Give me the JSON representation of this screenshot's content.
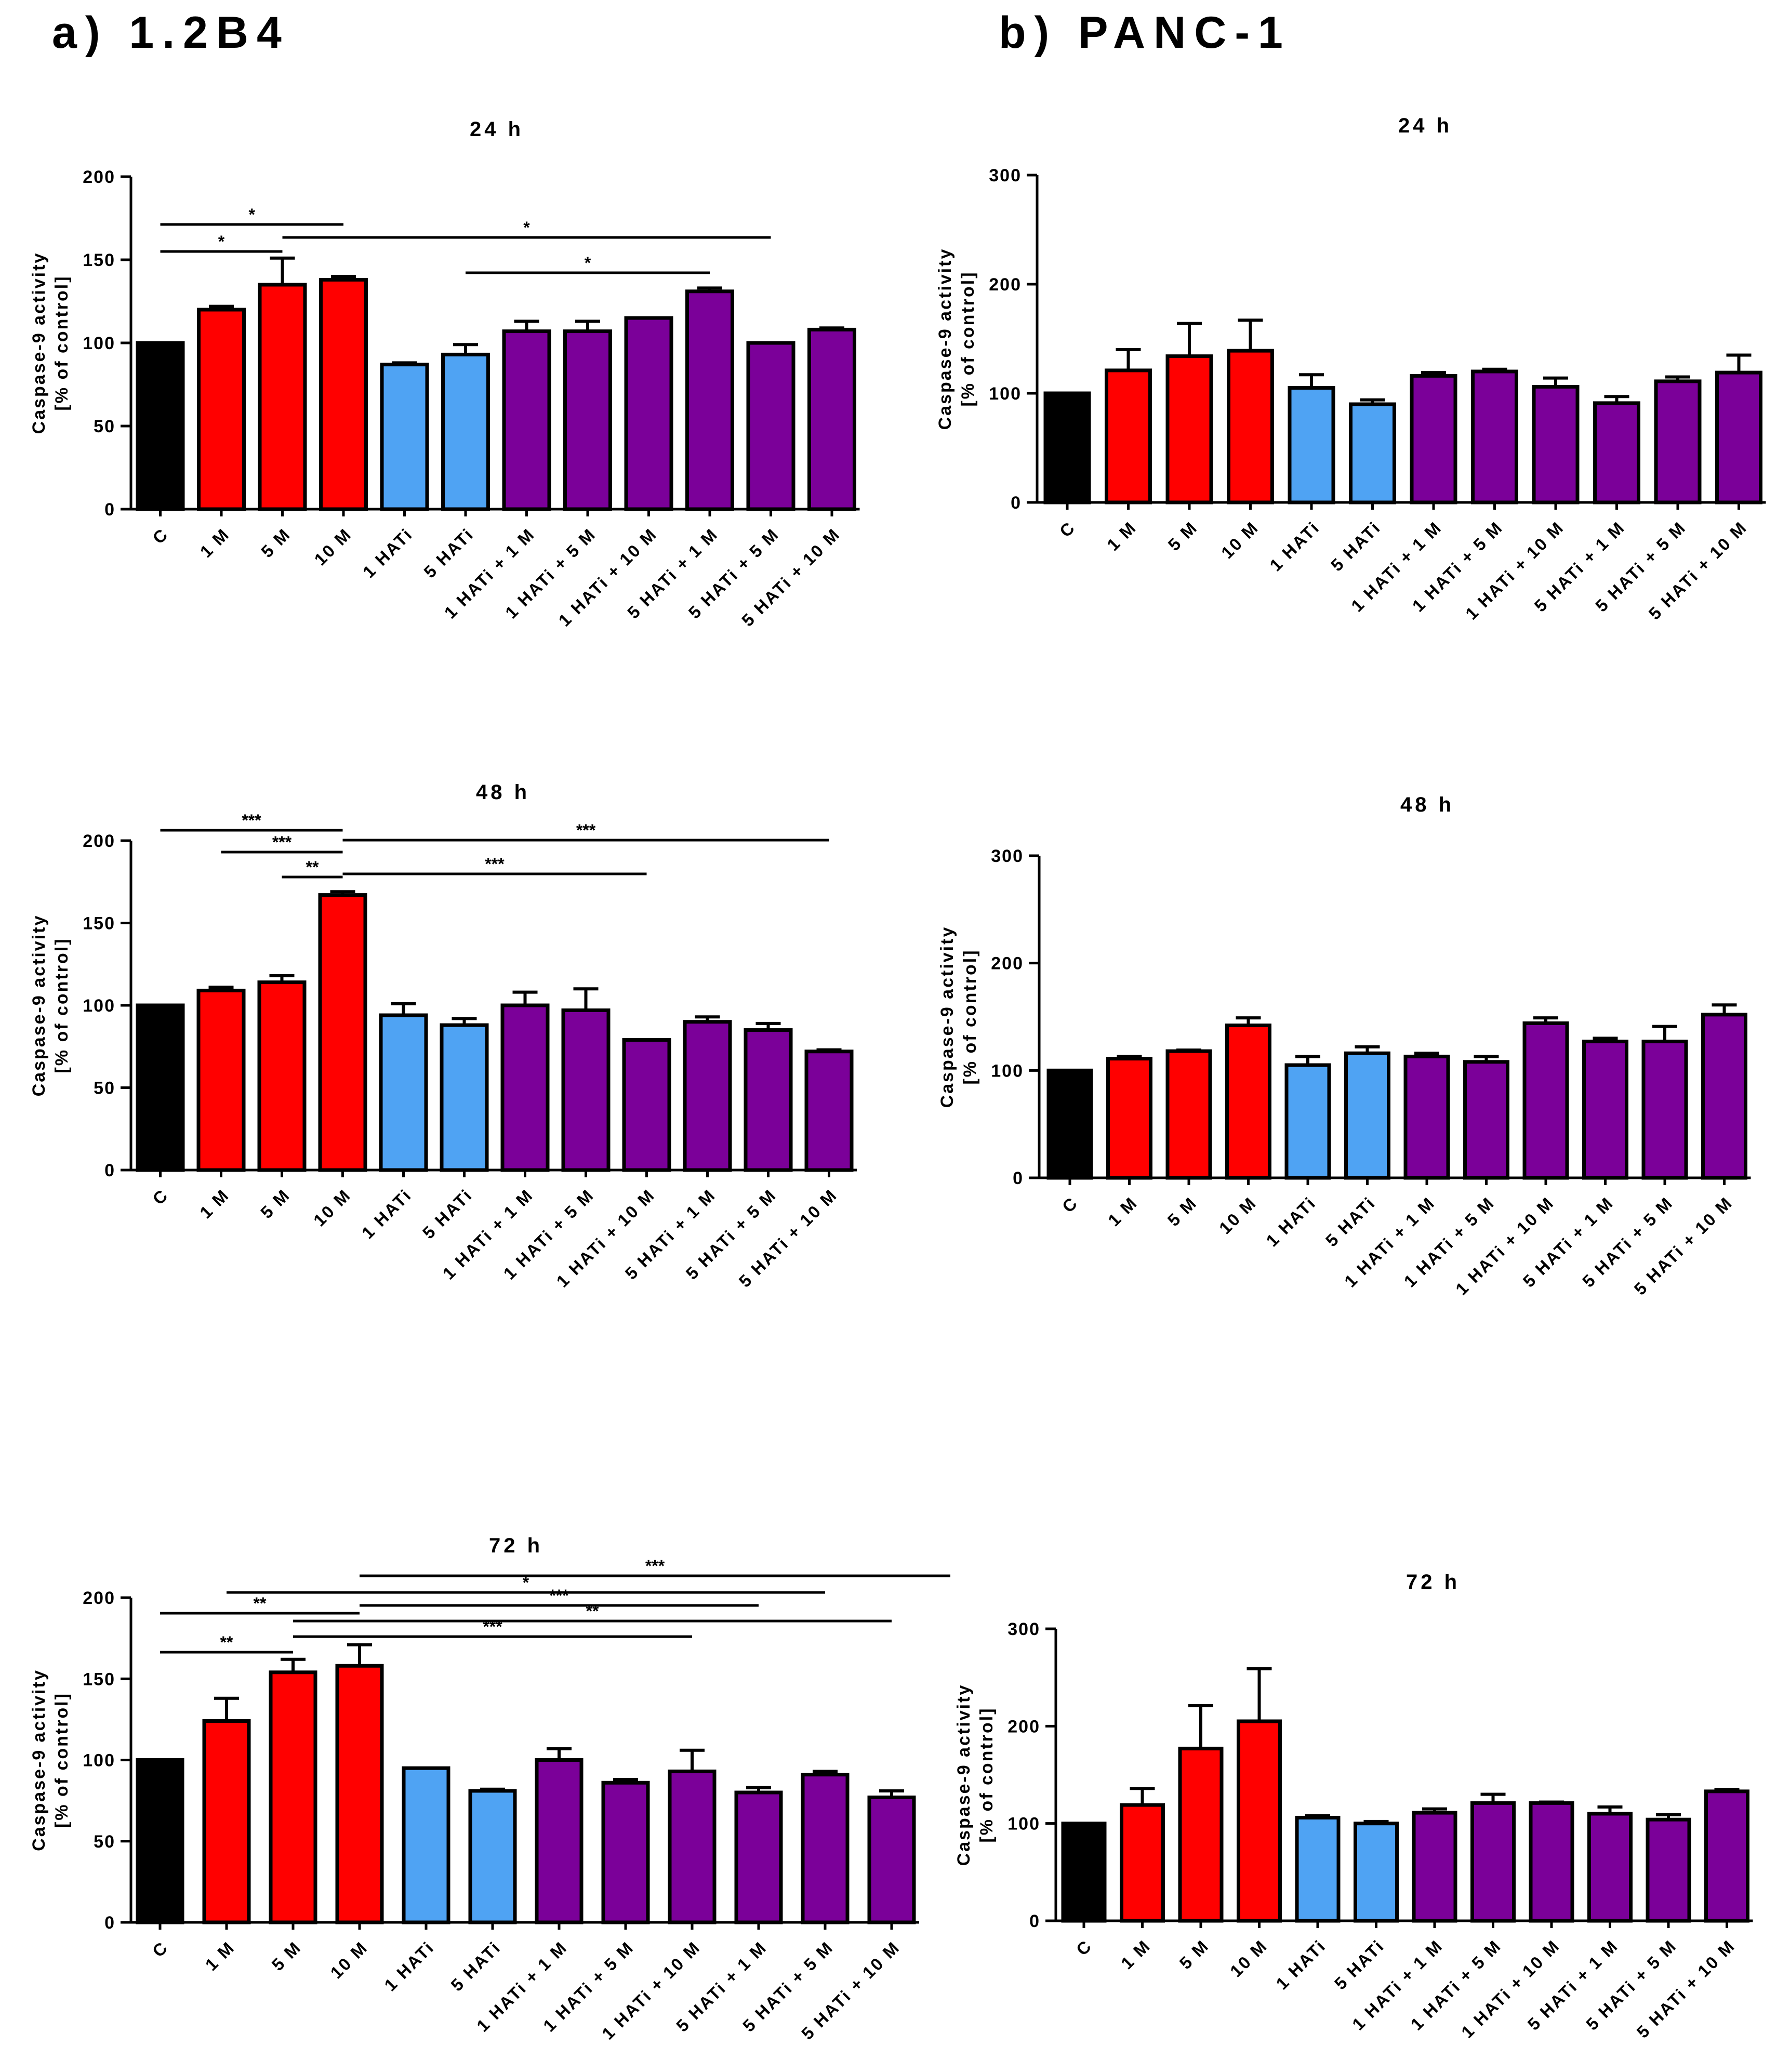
{
  "panels": [
    {
      "label": "a) 1.2B4"
    },
    {
      "label": "b) PANC-1"
    }
  ],
  "colors": {
    "C": "#000000",
    "M": "#ff0000",
    "HATi": "#4fa3f3",
    "combo": "#7b0099",
    "outline": "#000000"
  },
  "chart_data": [
    {
      "type": "bar",
      "panel": "a) 1.2B4",
      "title": "24 h",
      "ylabel": [
        "Caspase-9 activity",
        "[% of control]"
      ],
      "ylim": [
        0,
        200
      ],
      "yticks": [
        0,
        50,
        100,
        150,
        200
      ],
      "categories": [
        "C",
        "1 M",
        "5 M",
        "10 M",
        "1 HATi",
        "5 HATi",
        "1 HATi + 1 M",
        "1 HATi + 5 M",
        "1 HATi + 10 M",
        "5 HATi + 1 M",
        "5 HATi + 5 M",
        "5 HATi + 10 M"
      ],
      "groups": [
        "C",
        "M",
        "M",
        "M",
        "HATi",
        "HATi",
        "combo",
        "combo",
        "combo",
        "combo",
        "combo",
        "combo"
      ],
      "values": [
        100,
        120,
        135,
        138,
        87,
        93,
        107,
        107,
        115,
        131,
        100,
        108
      ],
      "errors": [
        0,
        2,
        16,
        2,
        1,
        6,
        6,
        6,
        0,
        2,
        0,
        1
      ],
      "significance": [
        {
          "from": 0,
          "to": 3,
          "label": "*"
        },
        {
          "from": 0,
          "to": 2,
          "label": "*"
        },
        {
          "from": 2,
          "to": 10,
          "label": "*"
        },
        {
          "from": 5,
          "to": 9,
          "label": "*"
        }
      ]
    },
    {
      "type": "bar",
      "panel": "a) 1.2B4",
      "title": "48 h",
      "ylabel": [
        "Caspase-9 activity",
        "[% of control]"
      ],
      "ylim": [
        0,
        200
      ],
      "yticks": [
        0,
        50,
        100,
        150,
        200
      ],
      "categories": [
        "C",
        "1 M",
        "5 M",
        "10 M",
        "1 HATi",
        "5 HATi",
        "1 HATi + 1 M",
        "1 HATi + 5 M",
        "1 HATi + 10 M",
        "5 HATi + 1 M",
        "5 HATi + 5 M",
        "5 HATi + 10 M"
      ],
      "groups": [
        "C",
        "M",
        "M",
        "M",
        "HATi",
        "HATi",
        "combo",
        "combo",
        "combo",
        "combo",
        "combo",
        "combo"
      ],
      "values": [
        100,
        109,
        114,
        167,
        94,
        88,
        100,
        97,
        79,
        90,
        85,
        72
      ],
      "errors": [
        0,
        2,
        4,
        2,
        7,
        4,
        8,
        13,
        0,
        3,
        4,
        1
      ],
      "significance": [
        {
          "from": 0,
          "to": 3,
          "label": "***"
        },
        {
          "from": 3,
          "to": 11,
          "label": "***"
        },
        {
          "from": 1,
          "to": 3,
          "label": "***"
        },
        {
          "from": 2,
          "to": 3,
          "label": "**"
        },
        {
          "from": 3,
          "to": 8,
          "label": "***"
        }
      ]
    },
    {
      "type": "bar",
      "panel": "a) 1.2B4",
      "title": "72 h",
      "ylabel": [
        "Caspase-9 activity",
        "[% of control]"
      ],
      "ylim": [
        0,
        200
      ],
      "yticks": [
        0,
        50,
        100,
        150,
        200
      ],
      "categories": [
        "C",
        "1 M",
        "5 M",
        "10 M",
        "1 HATi",
        "5 HATi",
        "1 HATi + 1 M",
        "1 HATi + 5 M",
        "1 HATi + 10 M",
        "5 HATi + 1 M",
        "5 HATi + 5 M",
        "5 HATi + 10 M"
      ],
      "groups": [
        "C",
        "M",
        "M",
        "M",
        "HATi",
        "HATi",
        "combo",
        "combo",
        "combo",
        "combo",
        "combo",
        "combo"
      ],
      "values": [
        100,
        124,
        154,
        158,
        95,
        81,
        100,
        86,
        93,
        80,
        91,
        77
      ],
      "errors": [
        0,
        14,
        8,
        13,
        0,
        1,
        7,
        2,
        13,
        3,
        2,
        4
      ],
      "significance": [
        {
          "from": 3,
          "to": 11.5,
          "label": "***"
        },
        {
          "from": 1,
          "to": 10,
          "label": "*"
        },
        {
          "from": 0,
          "to": 3,
          "label": "**"
        },
        {
          "from": 3,
          "to": 9,
          "label": "***"
        },
        {
          "from": 2,
          "to": 11,
          "label": "**"
        },
        {
          "from": 0,
          "to": 2,
          "label": "**"
        },
        {
          "from": 2,
          "to": 8,
          "label": "***"
        }
      ]
    },
    {
      "type": "bar",
      "panel": "b) PANC-1",
      "title": "24 h",
      "ylabel": [
        "Caspase-9 activity",
        "[% of control]"
      ],
      "ylim": [
        0,
        300
      ],
      "yticks": [
        0,
        100,
        200,
        300
      ],
      "categories": [
        "C",
        "1 M",
        "5 M",
        "10 M",
        "1 HATi",
        "5 HATi",
        "1 HATi + 1 M",
        "1 HATi + 5 M",
        "1 HATi + 10 M",
        "5 HATi + 1 M",
        "5 HATi + 5 M",
        "5 HATi + 10 M"
      ],
      "groups": [
        "C",
        "M",
        "M",
        "M",
        "HATi",
        "HATi",
        "combo",
        "combo",
        "combo",
        "combo",
        "combo",
        "combo"
      ],
      "values": [
        100,
        121,
        134,
        139,
        105,
        90,
        116,
        120,
        106,
        91,
        111,
        119
      ],
      "errors": [
        0,
        19,
        30,
        28,
        12,
        4,
        3,
        2,
        8,
        6,
        4,
        16
      ],
      "significance": []
    },
    {
      "type": "bar",
      "panel": "b) PANC-1",
      "title": "48 h",
      "ylabel": [
        "Caspase-9 activity",
        "[% of control]"
      ],
      "ylim": [
        0,
        300
      ],
      "yticks": [
        0,
        100,
        200,
        300
      ],
      "categories": [
        "C",
        "1 M",
        "5 M",
        "10 M",
        "1 HATi",
        "5 HATi",
        "1 HATi + 1 M",
        "1 HATi + 5 M",
        "1 HATi + 10 M",
        "5 HATi + 1 M",
        "5 HATi + 5 M",
        "5 HATi + 10 M"
      ],
      "groups": [
        "C",
        "M",
        "M",
        "M",
        "HATi",
        "HATi",
        "combo",
        "combo",
        "combo",
        "combo",
        "combo",
        "combo"
      ],
      "values": [
        100,
        111,
        118,
        142,
        105,
        116,
        113,
        108,
        144,
        127,
        127,
        152
      ],
      "errors": [
        0,
        2,
        1,
        7,
        8,
        6,
        3,
        5,
        5,
        3,
        14,
        9
      ],
      "significance": []
    },
    {
      "type": "bar",
      "panel": "b) PANC-1",
      "title": "72 h",
      "ylabel": [
        "Caspase-9 activity",
        "[% of control]"
      ],
      "ylim": [
        0,
        300
      ],
      "yticks": [
        0,
        100,
        200,
        300
      ],
      "categories": [
        "C",
        "1 M",
        "5 M",
        "10 M",
        "1 HATi",
        "5 HATi",
        "1 HATi + 1 M",
        "1 HATi + 5 M",
        "1 HATi + 10 M",
        "5 HATi + 1 M",
        "5 HATi + 5 M",
        "5 HATi + 10 M"
      ],
      "groups": [
        "C",
        "M",
        "M",
        "M",
        "HATi",
        "HATi",
        "combo",
        "combo",
        "combo",
        "combo",
        "combo",
        "combo"
      ],
      "values": [
        100,
        119,
        177,
        205,
        106,
        100,
        111,
        121,
        121,
        110,
        104,
        133
      ],
      "errors": [
        0,
        17,
        44,
        54,
        2,
        2,
        4,
        9,
        1,
        7,
        5,
        2
      ],
      "significance": []
    }
  ]
}
